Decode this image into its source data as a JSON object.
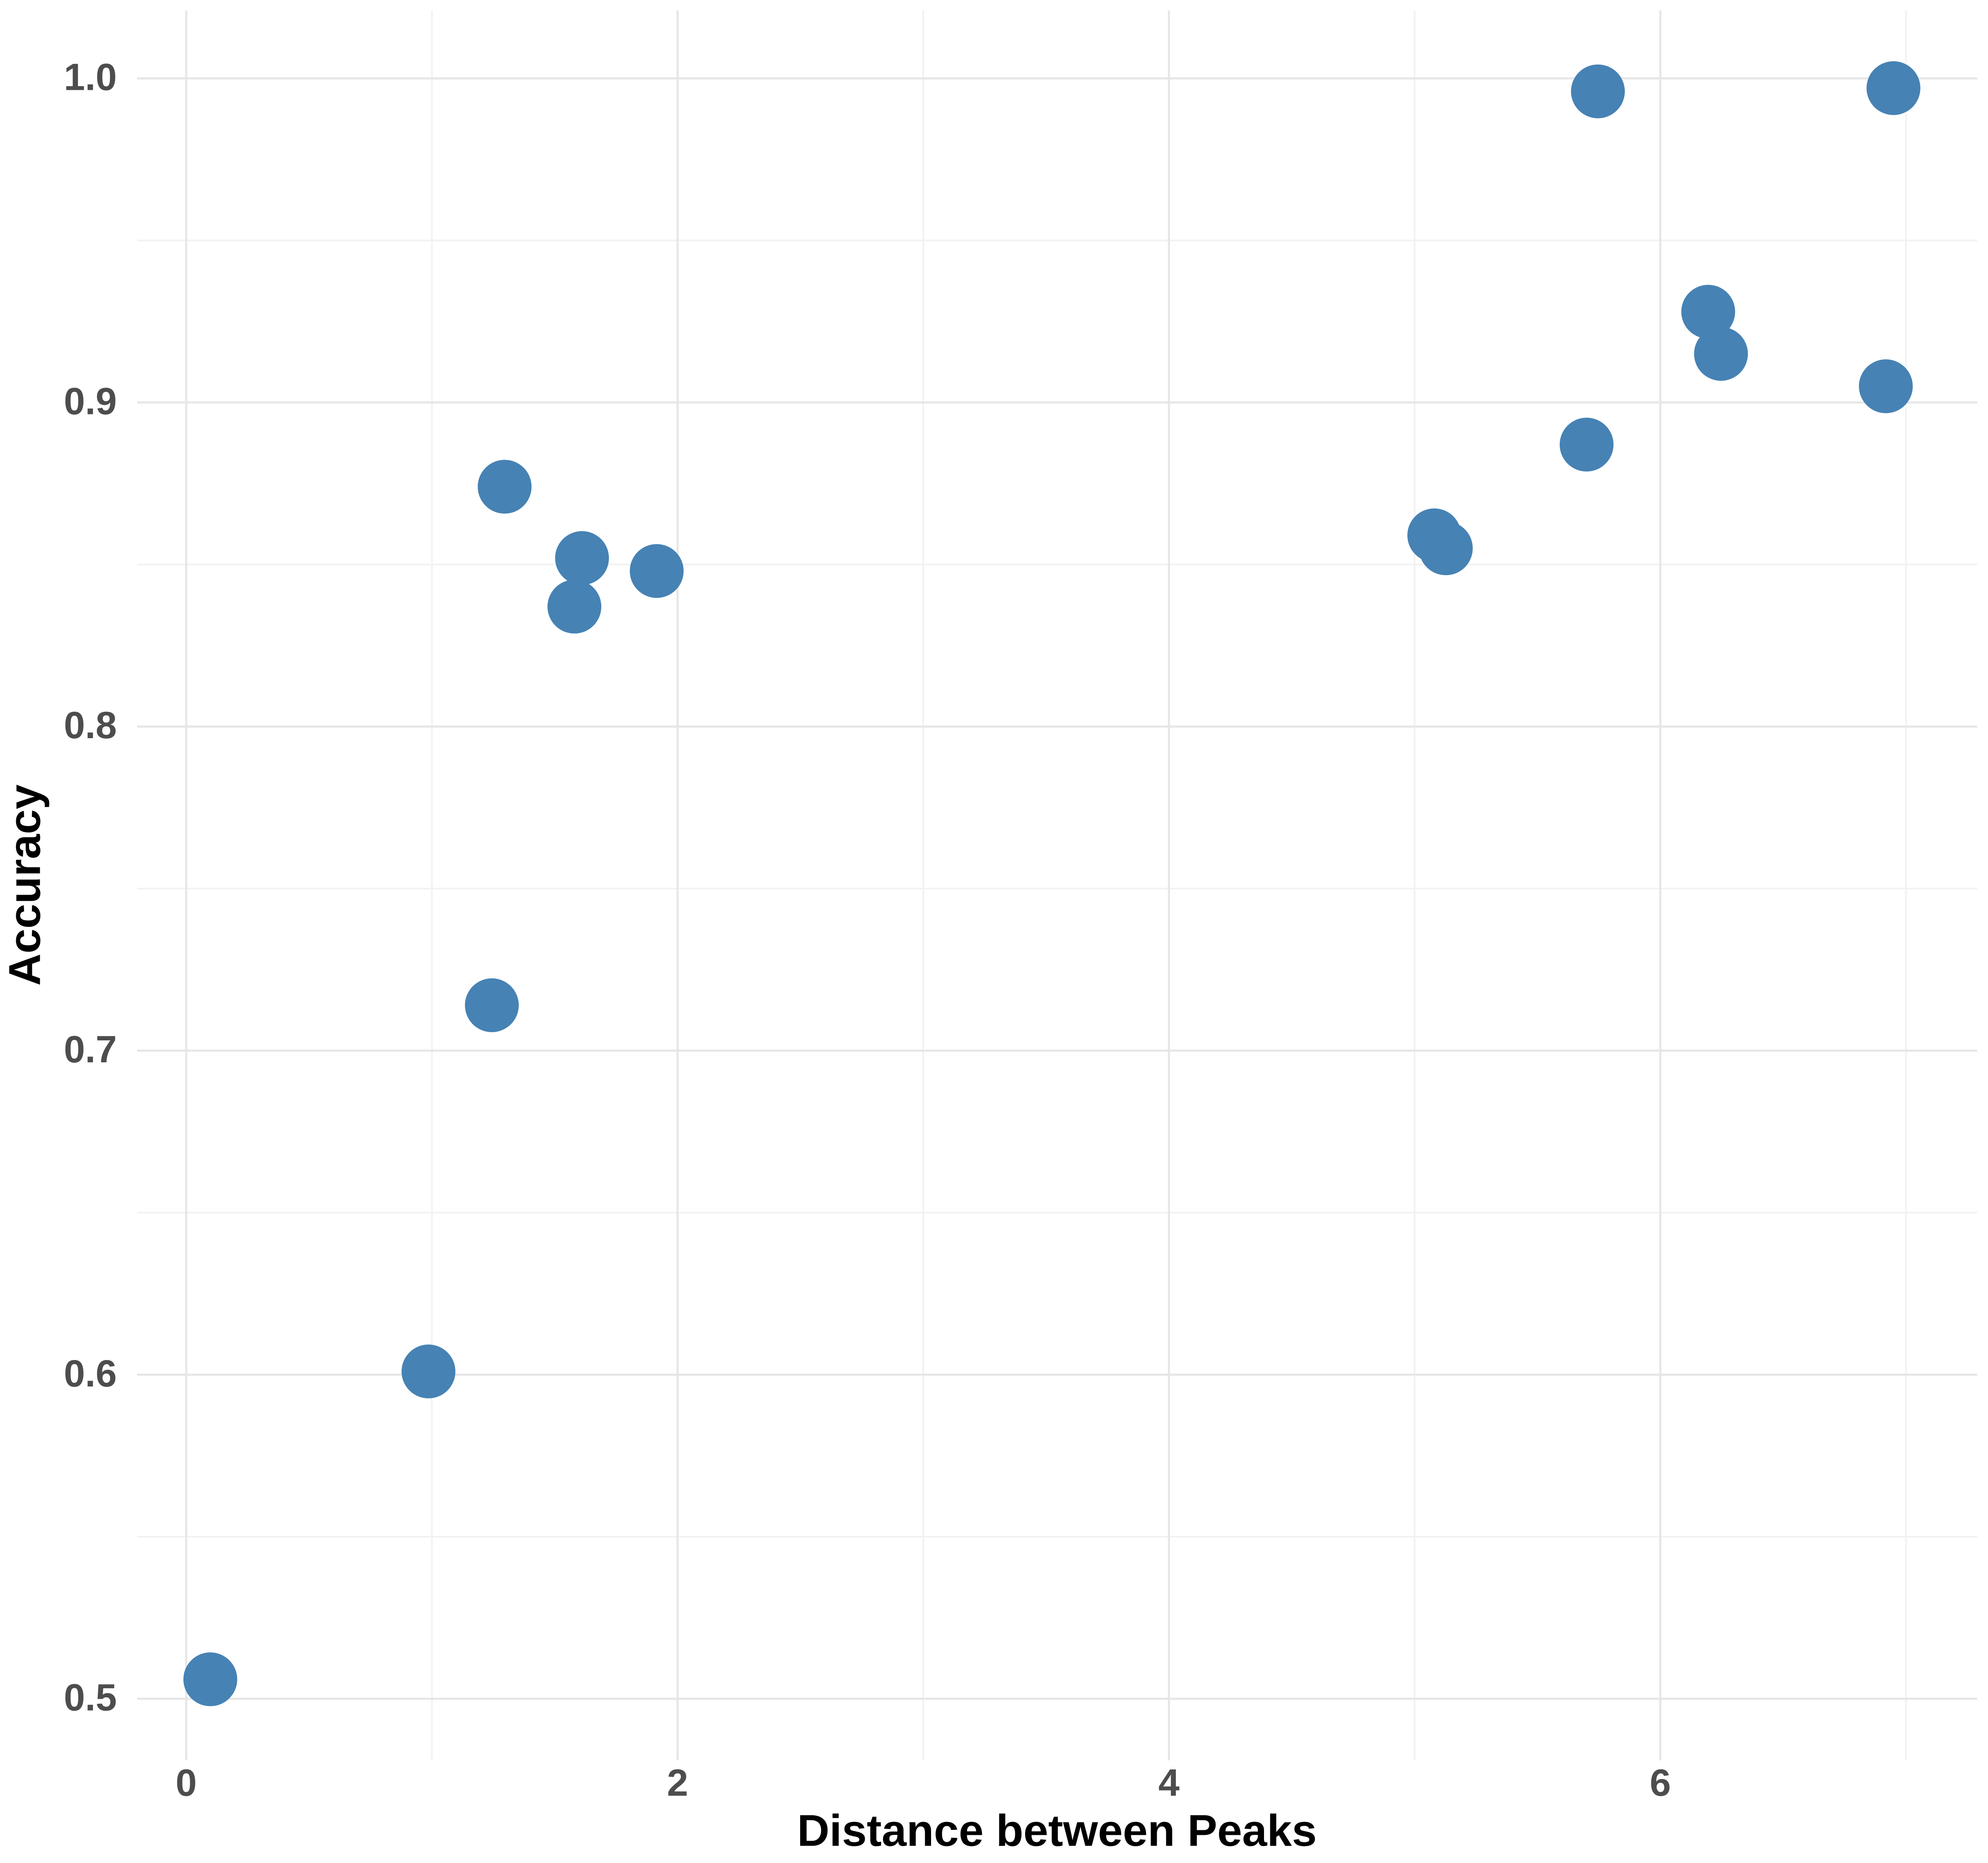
{
  "chart_data": {
    "type": "scatter",
    "x_label": "Distance between Peaks",
    "y_label": "Accuracy",
    "x": [
      0.098,
      0.986,
      1.244,
      1.296,
      1.611,
      1.58,
      1.915,
      5.08,
      5.127,
      5.7,
      5.746,
      6.195,
      6.247,
      6.918,
      6.949
    ],
    "values": [
      0.506,
      0.601,
      0.714,
      0.874,
      0.852,
      0.837,
      0.848,
      0.859,
      0.855,
      0.887,
      0.996,
      0.928,
      0.915,
      0.905,
      0.997
    ],
    "color": "#4682b4",
    "xlim": [
      -0.2,
      7.29
    ],
    "xticks": [
      0,
      2,
      4,
      6
    ],
    "ylim": [
      0.481,
      1.021
    ],
    "yticks": [
      {
        "value": 0.5,
        "label": "0.5"
      },
      {
        "value": 0.6,
        "label": "0.6"
      },
      {
        "value": 0.7,
        "label": "0.7"
      },
      {
        "value": 0.8,
        "label": "0.8"
      },
      {
        "value": 0.9,
        "label": "0.9"
      },
      {
        "value": 1.0,
        "label": "1.0"
      }
    ],
    "grid": true
  }
}
